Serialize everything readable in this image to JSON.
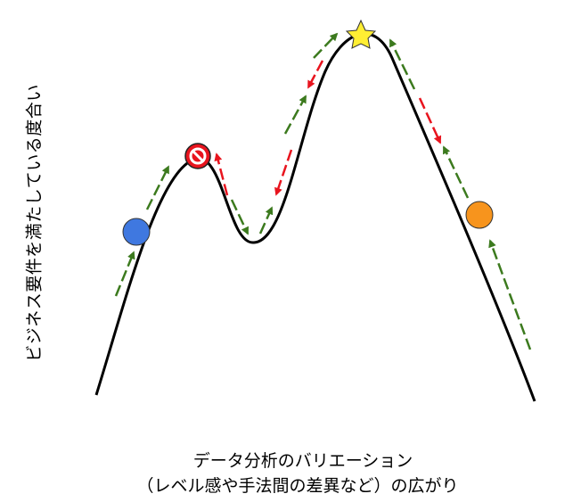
{
  "y_axis_label": "ビジネス要件を満たしている度合い",
  "x_axis_label_line1": "データ分析のバリエーション",
  "x_axis_label_line2": "（レベル感や手法間の差異など）の広がり",
  "colors": {
    "curve": "#000000",
    "forward_arrow": "#3c7a1e",
    "backward_arrow": "#e8141e",
    "blue_ball": "#3f78e0",
    "orange_ball": "#f7941d",
    "no_entry": "#e8141e",
    "star": "#ffee33"
  },
  "icons": [
    "blue-ball",
    "no-entry-icon",
    "star-icon",
    "orange-ball"
  ]
}
